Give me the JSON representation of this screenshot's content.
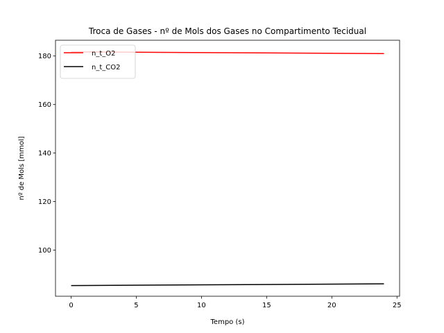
{
  "chart_data": {
    "type": "line",
    "title": "Troca de Gases - nº de Mols dos Gases no Compartimento Tecidual",
    "xlabel": "Tempo (s)",
    "ylabel": "nº de Mols [mmol]",
    "xlim": [
      -1.2,
      25.2
    ],
    "ylim": [
      81.0,
      186.5
    ],
    "xticks": [
      0,
      5,
      10,
      15,
      20,
      25
    ],
    "yticks": [
      100,
      120,
      140,
      160,
      180
    ],
    "grid": false,
    "legend_position": "upper-left",
    "series": [
      {
        "name": "n_t_O2",
        "color": "#ff0000",
        "x": [
          0,
          24
        ],
        "y": [
          181.7,
          181.0
        ]
      },
      {
        "name": "n_t_CO2",
        "color": "#000000",
        "x": [
          0,
          24
        ],
        "y": [
          85.4,
          86.1
        ]
      }
    ]
  }
}
